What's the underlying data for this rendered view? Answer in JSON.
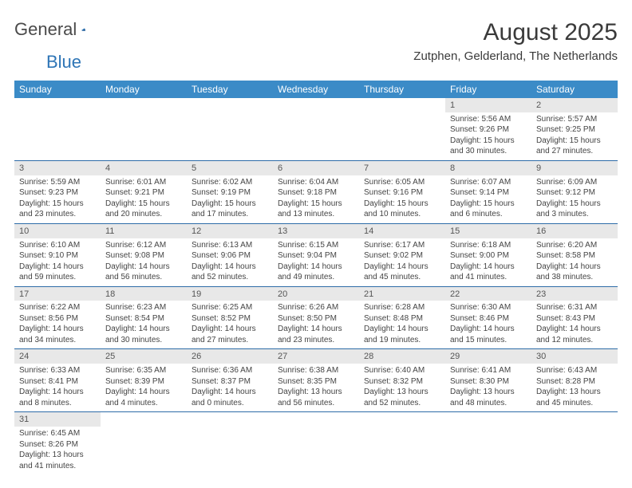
{
  "logo": {
    "text1": "General",
    "text2": "Blue"
  },
  "title": "August 2025",
  "subtitle": "Zutphen, Gelderland, The Netherlands",
  "days": [
    "Sunday",
    "Monday",
    "Tuesday",
    "Wednesday",
    "Thursday",
    "Friday",
    "Saturday"
  ],
  "colors": {
    "header_bg": "#3b8bc7",
    "header_text": "#ffffff",
    "daynum_bg": "#e8e8e8",
    "row_border": "#2e6ca8",
    "logo_blue": "#2e75b6"
  },
  "weeks": [
    [
      null,
      null,
      null,
      null,
      null,
      {
        "n": "1",
        "sr": "Sunrise: 5:56 AM",
        "ss": "Sunset: 9:26 PM",
        "d1": "Daylight: 15 hours",
        "d2": "and 30 minutes."
      },
      {
        "n": "2",
        "sr": "Sunrise: 5:57 AM",
        "ss": "Sunset: 9:25 PM",
        "d1": "Daylight: 15 hours",
        "d2": "and 27 minutes."
      }
    ],
    [
      {
        "n": "3",
        "sr": "Sunrise: 5:59 AM",
        "ss": "Sunset: 9:23 PM",
        "d1": "Daylight: 15 hours",
        "d2": "and 23 minutes."
      },
      {
        "n": "4",
        "sr": "Sunrise: 6:01 AM",
        "ss": "Sunset: 9:21 PM",
        "d1": "Daylight: 15 hours",
        "d2": "and 20 minutes."
      },
      {
        "n": "5",
        "sr": "Sunrise: 6:02 AM",
        "ss": "Sunset: 9:19 PM",
        "d1": "Daylight: 15 hours",
        "d2": "and 17 minutes."
      },
      {
        "n": "6",
        "sr": "Sunrise: 6:04 AM",
        "ss": "Sunset: 9:18 PM",
        "d1": "Daylight: 15 hours",
        "d2": "and 13 minutes."
      },
      {
        "n": "7",
        "sr": "Sunrise: 6:05 AM",
        "ss": "Sunset: 9:16 PM",
        "d1": "Daylight: 15 hours",
        "d2": "and 10 minutes."
      },
      {
        "n": "8",
        "sr": "Sunrise: 6:07 AM",
        "ss": "Sunset: 9:14 PM",
        "d1": "Daylight: 15 hours",
        "d2": "and 6 minutes."
      },
      {
        "n": "9",
        "sr": "Sunrise: 6:09 AM",
        "ss": "Sunset: 9:12 PM",
        "d1": "Daylight: 15 hours",
        "d2": "and 3 minutes."
      }
    ],
    [
      {
        "n": "10",
        "sr": "Sunrise: 6:10 AM",
        "ss": "Sunset: 9:10 PM",
        "d1": "Daylight: 14 hours",
        "d2": "and 59 minutes."
      },
      {
        "n": "11",
        "sr": "Sunrise: 6:12 AM",
        "ss": "Sunset: 9:08 PM",
        "d1": "Daylight: 14 hours",
        "d2": "and 56 minutes."
      },
      {
        "n": "12",
        "sr": "Sunrise: 6:13 AM",
        "ss": "Sunset: 9:06 PM",
        "d1": "Daylight: 14 hours",
        "d2": "and 52 minutes."
      },
      {
        "n": "13",
        "sr": "Sunrise: 6:15 AM",
        "ss": "Sunset: 9:04 PM",
        "d1": "Daylight: 14 hours",
        "d2": "and 49 minutes."
      },
      {
        "n": "14",
        "sr": "Sunrise: 6:17 AM",
        "ss": "Sunset: 9:02 PM",
        "d1": "Daylight: 14 hours",
        "d2": "and 45 minutes."
      },
      {
        "n": "15",
        "sr": "Sunrise: 6:18 AM",
        "ss": "Sunset: 9:00 PM",
        "d1": "Daylight: 14 hours",
        "d2": "and 41 minutes."
      },
      {
        "n": "16",
        "sr": "Sunrise: 6:20 AM",
        "ss": "Sunset: 8:58 PM",
        "d1": "Daylight: 14 hours",
        "d2": "and 38 minutes."
      }
    ],
    [
      {
        "n": "17",
        "sr": "Sunrise: 6:22 AM",
        "ss": "Sunset: 8:56 PM",
        "d1": "Daylight: 14 hours",
        "d2": "and 34 minutes."
      },
      {
        "n": "18",
        "sr": "Sunrise: 6:23 AM",
        "ss": "Sunset: 8:54 PM",
        "d1": "Daylight: 14 hours",
        "d2": "and 30 minutes."
      },
      {
        "n": "19",
        "sr": "Sunrise: 6:25 AM",
        "ss": "Sunset: 8:52 PM",
        "d1": "Daylight: 14 hours",
        "d2": "and 27 minutes."
      },
      {
        "n": "20",
        "sr": "Sunrise: 6:26 AM",
        "ss": "Sunset: 8:50 PM",
        "d1": "Daylight: 14 hours",
        "d2": "and 23 minutes."
      },
      {
        "n": "21",
        "sr": "Sunrise: 6:28 AM",
        "ss": "Sunset: 8:48 PM",
        "d1": "Daylight: 14 hours",
        "d2": "and 19 minutes."
      },
      {
        "n": "22",
        "sr": "Sunrise: 6:30 AM",
        "ss": "Sunset: 8:46 PM",
        "d1": "Daylight: 14 hours",
        "d2": "and 15 minutes."
      },
      {
        "n": "23",
        "sr": "Sunrise: 6:31 AM",
        "ss": "Sunset: 8:43 PM",
        "d1": "Daylight: 14 hours",
        "d2": "and 12 minutes."
      }
    ],
    [
      {
        "n": "24",
        "sr": "Sunrise: 6:33 AM",
        "ss": "Sunset: 8:41 PM",
        "d1": "Daylight: 14 hours",
        "d2": "and 8 minutes."
      },
      {
        "n": "25",
        "sr": "Sunrise: 6:35 AM",
        "ss": "Sunset: 8:39 PM",
        "d1": "Daylight: 14 hours",
        "d2": "and 4 minutes."
      },
      {
        "n": "26",
        "sr": "Sunrise: 6:36 AM",
        "ss": "Sunset: 8:37 PM",
        "d1": "Daylight: 14 hours",
        "d2": "and 0 minutes."
      },
      {
        "n": "27",
        "sr": "Sunrise: 6:38 AM",
        "ss": "Sunset: 8:35 PM",
        "d1": "Daylight: 13 hours",
        "d2": "and 56 minutes."
      },
      {
        "n": "28",
        "sr": "Sunrise: 6:40 AM",
        "ss": "Sunset: 8:32 PM",
        "d1": "Daylight: 13 hours",
        "d2": "and 52 minutes."
      },
      {
        "n": "29",
        "sr": "Sunrise: 6:41 AM",
        "ss": "Sunset: 8:30 PM",
        "d1": "Daylight: 13 hours",
        "d2": "and 48 minutes."
      },
      {
        "n": "30",
        "sr": "Sunrise: 6:43 AM",
        "ss": "Sunset: 8:28 PM",
        "d1": "Daylight: 13 hours",
        "d2": "and 45 minutes."
      }
    ],
    [
      {
        "n": "31",
        "sr": "Sunrise: 6:45 AM",
        "ss": "Sunset: 8:26 PM",
        "d1": "Daylight: 13 hours",
        "d2": "and 41 minutes."
      },
      null,
      null,
      null,
      null,
      null,
      null
    ]
  ]
}
